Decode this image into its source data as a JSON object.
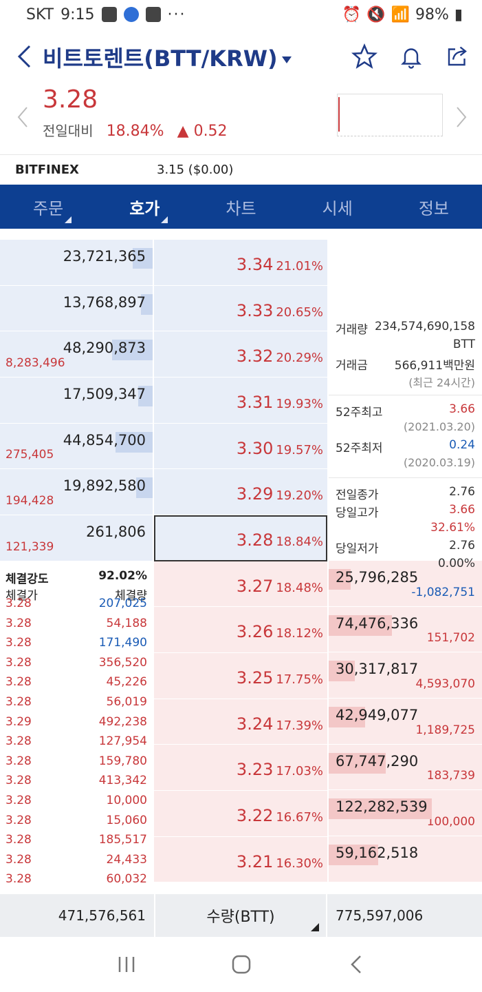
{
  "status_bar": {
    "carrier": "SKT",
    "time": "9:15",
    "battery": "98%"
  },
  "header": {
    "title": "비트토렌트(BTT/KRW)"
  },
  "price": {
    "current": "3.28",
    "label": "전일대비",
    "rate": "18.84%",
    "change": "▲ 0.52"
  },
  "exchange": {
    "name": "BITFINEX",
    "value": "3.15 ($0.00)"
  },
  "tabs": [
    {
      "label": "주문",
      "active": false
    },
    {
      "label": "호가",
      "active": true
    },
    {
      "label": "차트",
      "active": false
    },
    {
      "label": "시세",
      "active": false
    },
    {
      "label": "정보",
      "active": false
    }
  ],
  "asks": [
    {
      "qty": "23,721,365",
      "bar": 0.19,
      "price": "3.34",
      "rate": "21.01%",
      "chg": ""
    },
    {
      "qty": "13,768,897",
      "bar": 0.11,
      "price": "3.33",
      "rate": "20.65%",
      "chg": ""
    },
    {
      "qty": "48,290,873",
      "bar": 0.39,
      "price": "3.32",
      "rate": "20.29%",
      "chg": "8,283,496"
    },
    {
      "qty": "17,509,347",
      "bar": 0.14,
      "price": "3.31",
      "rate": "19.93%",
      "chg": ""
    },
    {
      "qty": "44,854,700",
      "bar": 0.36,
      "price": "3.30",
      "rate": "19.57%",
      "chg": "275,405"
    },
    {
      "qty": "19,892,580",
      "bar": 0.16,
      "price": "3.29",
      "rate": "19.20%",
      "chg": "194,428"
    },
    {
      "qty": "261,806",
      "bar": 0.0,
      "price": "3.28",
      "rate": "18.84%",
      "chg": "121,339"
    }
  ],
  "bids": [
    {
      "qty": "25,796,285",
      "bar": 0.21,
      "price": "3.27",
      "rate": "18.48%",
      "chg": "-1,082,751",
      "chg_blue": true
    },
    {
      "qty": "74,476,336",
      "bar": 0.61,
      "price": "3.26",
      "rate": "18.12%",
      "chg": "151,702",
      "chg_blue": false
    },
    {
      "qty": "30,317,817",
      "bar": 0.25,
      "price": "3.25",
      "rate": "17.75%",
      "chg": "4,593,070",
      "chg_blue": false
    },
    {
      "qty": "42,949,077",
      "bar": 0.35,
      "price": "3.24",
      "rate": "17.39%",
      "chg": "1,189,725",
      "chg_blue": false
    },
    {
      "qty": "67,747,290",
      "bar": 0.55,
      "price": "3.23",
      "rate": "17.03%",
      "chg": "183,739",
      "chg_blue": false
    },
    {
      "qty": "122,282,539",
      "bar": 1.0,
      "price": "3.22",
      "rate": "16.67%",
      "chg": "100,000",
      "chg_blue": false
    },
    {
      "qty": "59,162,518",
      "bar": 0.48,
      "price": "3.21",
      "rate": "16.30%",
      "chg": "",
      "chg_blue": false
    }
  ],
  "info": {
    "volume_label": "거래량",
    "volume": "234,574,690,158",
    "volume_unit": "BTT",
    "amount_label": "거래금",
    "amount": "566,911백만원",
    "amount_note": "(최근 24시간)",
    "high52_label": "52주최고",
    "high52": "3.66",
    "high52_date": "(2021.03.20)",
    "low52_label": "52주최저",
    "low52": "0.24",
    "low52_date": "(2020.03.19)",
    "prev_close_label": "전일종가",
    "prev_close": "2.76",
    "day_high_label": "당일고가",
    "day_high": "3.66",
    "day_high_rate": "32.61%",
    "day_low_label": "당일저가",
    "day_low": "2.76",
    "day_low_rate": "0.00%"
  },
  "trades": {
    "strength_label": "체결강도",
    "strength": "92.02%",
    "price_label": "체결가",
    "qty_label": "체결량",
    "rows": [
      {
        "p": "3.28",
        "q": "207,025",
        "blue": true
      },
      {
        "p": "3.28",
        "q": "54,188",
        "blue": false
      },
      {
        "p": "3.28",
        "q": "171,490",
        "blue": true
      },
      {
        "p": "3.28",
        "q": "356,520",
        "blue": false
      },
      {
        "p": "3.28",
        "q": "45,226",
        "blue": false
      },
      {
        "p": "3.28",
        "q": "56,019",
        "blue": false
      },
      {
        "p": "3.29",
        "q": "492,238",
        "blue": false
      },
      {
        "p": "3.28",
        "q": "127,954",
        "blue": false
      },
      {
        "p": "3.28",
        "q": "159,780",
        "blue": false
      },
      {
        "p": "3.28",
        "q": "413,342",
        "blue": false
      },
      {
        "p": "3.28",
        "q": "10,000",
        "blue": false
      },
      {
        "p": "3.28",
        "q": "15,060",
        "blue": false
      },
      {
        "p": "3.28",
        "q": "185,517",
        "blue": false
      },
      {
        "p": "3.28",
        "q": "24,433",
        "blue": false
      },
      {
        "p": "3.28",
        "q": "60,032",
        "blue": false
      }
    ]
  },
  "footer": {
    "ask_total": "471,576,561",
    "unit": "수량(BTT)",
    "bid_total": "775,597,006"
  },
  "icons": {
    "back": "back-arrow-icon",
    "star": "star-icon",
    "bell": "bell-icon",
    "share": "share-icon",
    "prev": "chevron-left-icon",
    "next": "chevron-right-icon",
    "recent": "recent-apps-icon",
    "home": "home-icon",
    "nav_back": "nav-back-icon"
  }
}
